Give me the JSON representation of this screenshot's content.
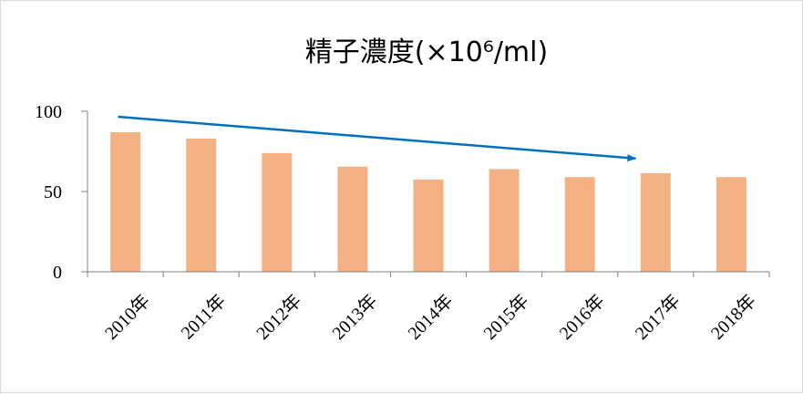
{
  "chart_data": {
    "type": "bar",
    "title": "精子濃度(×10⁶/ml)",
    "categories": [
      "2010年",
      "2011年",
      "2012年",
      "2013年",
      "2014年",
      "2015年",
      "2016年",
      "2017年",
      "2018年"
    ],
    "values": [
      87,
      83,
      74,
      65.5,
      57.5,
      64,
      59,
      61.5,
      59
    ],
    "ylim": [
      0,
      100
    ],
    "yticks": [
      0,
      50,
      100
    ],
    "xlabel": "",
    "ylabel": "",
    "grid": false,
    "legend": "none",
    "bar_color": "#f4b183",
    "axis_color": "#808080",
    "annotation": {
      "type": "arrow",
      "from": {
        "x": "2010年",
        "y": 100
      },
      "to": {
        "x": "2017年",
        "y": 70
      },
      "color": "#0070c0"
    }
  }
}
